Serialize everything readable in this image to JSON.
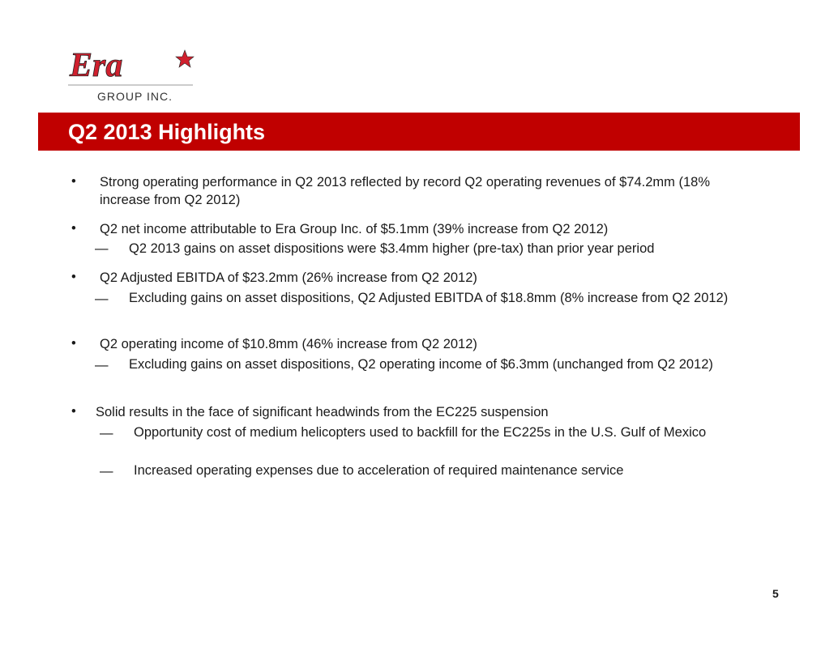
{
  "logo": {
    "text": "Era",
    "subtext": "GROUP INC.",
    "brand_color": "#d0202e"
  },
  "header": {
    "title": "Q2 2013 Highlights",
    "banner_color": "#c00000"
  },
  "bullets": [
    {
      "text": "Strong operating performance in Q2 2013 reflected by record Q2 operating revenues of $74.2mm (18% increase from Q2 2012)",
      "subs": []
    },
    {
      "text": "Q2 net income attributable to Era Group Inc. of $5.1mm (39% increase from Q2 2012)",
      "subs": [
        "Q2 2013 gains on asset dispositions were $3.4mm higher (pre-tax) than prior year period"
      ]
    },
    {
      "text": "Q2 Adjusted EBITDA of $23.2mm (26% increase from Q2 2012)",
      "subs": [
        "Excluding gains on asset dispositions, Q2 Adjusted EBITDA of $18.8mm (8% increase from Q2 2012)"
      ]
    },
    {
      "text": "Q2 operating income of $10.8mm (46% increase from Q2 2012)",
      "subs": [
        "Excluding gains on asset dispositions, Q2 operating income of $6.3mm (unchanged from Q2 2012)"
      ]
    },
    {
      "text": "Solid results in the face of significant headwinds from the EC225 suspension",
      "subs": [
        "Opportunity cost of medium helicopters used to backfill for the EC225s in the U.S. Gulf of Mexico",
        "Increased operating expenses due to acceleration of required maintenance service"
      ]
    }
  ],
  "page_number": "5"
}
